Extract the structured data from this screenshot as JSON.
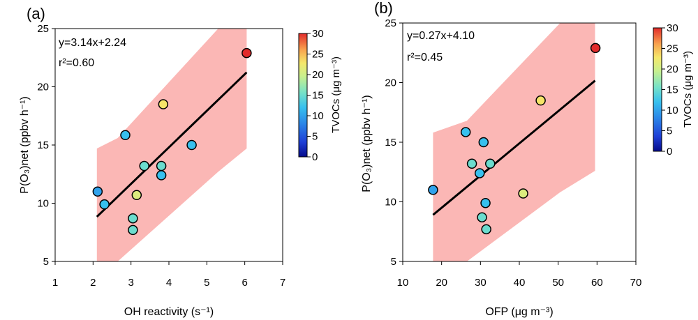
{
  "chart_data": [
    {
      "type": "scatter",
      "panel_label": "(a)",
      "xlabel": "OH reactivity (s⁻¹)",
      "ylabel": "P(O₃)net (ppbv h⁻¹)",
      "xlim": [
        1,
        7
      ],
      "ylim": [
        5,
        25
      ],
      "xticks": [
        1,
        2,
        3,
        4,
        5,
        6,
        7
      ],
      "yticks": [
        5,
        10,
        15,
        20,
        25
      ],
      "grid": false,
      "equation": "y=3.14x+2.24",
      "r2": "r²=0.60",
      "fit": {
        "slope": 3.14,
        "intercept": 2.24,
        "x": [
          2.1,
          6.05
        ]
      },
      "band": {
        "x": [
          2.1,
          2.65,
          5.3,
          6.05
        ],
        "upper": [
          14.7,
          15.6,
          25.0,
          25.0
        ],
        "lower": [
          5.0,
          5.0,
          12.7,
          14.7
        ]
      },
      "points": [
        {
          "x": 2.12,
          "y": 11.0,
          "c": 10
        },
        {
          "x": 2.3,
          "y": 9.9,
          "c": 12
        },
        {
          "x": 2.85,
          "y": 15.85,
          "c": 12
        },
        {
          "x": 3.05,
          "y": 8.7,
          "c": 15
        },
        {
          "x": 3.05,
          "y": 7.7,
          "c": 15
        },
        {
          "x": 3.15,
          "y": 10.7,
          "c": 21
        },
        {
          "x": 3.35,
          "y": 13.2,
          "c": 15
        },
        {
          "x": 3.8,
          "y": 13.2,
          "c": 15
        },
        {
          "x": 3.8,
          "y": 12.4,
          "c": 12
        },
        {
          "x": 3.85,
          "y": 18.5,
          "c": 23
        },
        {
          "x": 4.6,
          "y": 15.0,
          "c": 12
        },
        {
          "x": 6.05,
          "y": 22.9,
          "c": 30
        }
      ],
      "colorbar": {
        "label": "TVOCs (μg m⁻³)",
        "range": [
          0,
          30
        ],
        "ticks": [
          0,
          5,
          10,
          15,
          20,
          25,
          30
        ]
      }
    },
    {
      "type": "scatter",
      "panel_label": "(b)",
      "xlabel": "OFP (μg m⁻³)",
      "ylabel": "P(O₃)net (ppbv h⁻¹)",
      "xlim": [
        10,
        70
      ],
      "ylim": [
        5,
        25
      ],
      "xticks": [
        10,
        20,
        30,
        40,
        50,
        60,
        70
      ],
      "yticks": [
        5,
        10,
        15,
        20,
        25
      ],
      "grid": false,
      "equation": "y=0.27x+4.10",
      "r2": "r²=0.45",
      "fit": {
        "slope": 0.27,
        "intercept": 4.1,
        "x": [
          17.8,
          59.5
        ]
      },
      "band": {
        "x": [
          17.8,
          26.5,
          50.5,
          59.5
        ],
        "upper": [
          15.8,
          16.8,
          25.0,
          25.0
        ],
        "lower": [
          5.0,
          5.0,
          10.8,
          12.6
        ]
      },
      "points": [
        {
          "x": 17.8,
          "y": 11.0,
          "c": 10
        },
        {
          "x": 26.2,
          "y": 15.85,
          "c": 12
        },
        {
          "x": 27.8,
          "y": 13.2,
          "c": 15
        },
        {
          "x": 29.8,
          "y": 12.4,
          "c": 12
        },
        {
          "x": 30.4,
          "y": 8.7,
          "c": 15
        },
        {
          "x": 30.8,
          "y": 15.0,
          "c": 12
        },
        {
          "x": 31.3,
          "y": 9.9,
          "c": 12
        },
        {
          "x": 31.5,
          "y": 7.7,
          "c": 15
        },
        {
          "x": 32.5,
          "y": 13.2,
          "c": 15
        },
        {
          "x": 41.0,
          "y": 10.7,
          "c": 21
        },
        {
          "x": 45.5,
          "y": 18.5,
          "c": 23
        },
        {
          "x": 59.6,
          "y": 22.9,
          "c": 30
        }
      ],
      "colorbar": {
        "label": "TVOCs (μg m⁻³)",
        "range": [
          0,
          30
        ],
        "ticks": [
          0,
          5,
          10,
          15,
          20,
          25,
          30
        ]
      }
    }
  ],
  "style": {
    "band_color": "#fbb7b5",
    "fit_color": "#000000"
  }
}
